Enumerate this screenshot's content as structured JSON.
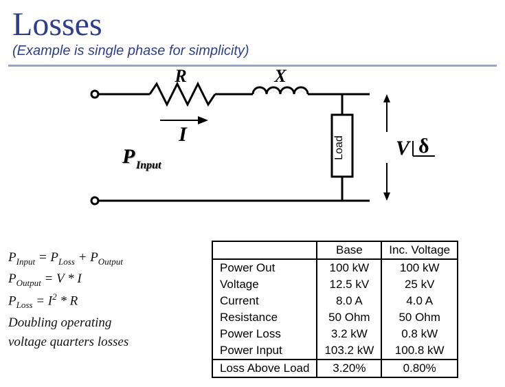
{
  "header": {
    "title": "Losses",
    "subtitle": "(Example is single phase for simplicity)",
    "title_color": "#2e3e8e",
    "title_fontsize": 48,
    "subtitle_fontsize": 20
  },
  "circuit": {
    "labels": {
      "R": "R",
      "X": "X",
      "I": "I",
      "P": "P",
      "P_sub": "Input",
      "Load": "Load",
      "V": "V",
      "delta": "δ"
    },
    "stroke_color": "#000000",
    "wire_width": 3,
    "terminal_radius": 5
  },
  "formulas": {
    "line1": {
      "lhs_sym": "P",
      "lhs_sub": "Input",
      "eq": "= ",
      "r1_sym": "P",
      "r1_sub": "Loss",
      "plus": "+ ",
      "r2_sym": "P",
      "r2_sub": "Output"
    },
    "line2": {
      "lhs_sym": "P",
      "lhs_sub": "Output",
      "eq": " = V * I"
    },
    "line3": {
      "lhs_sym": "P",
      "lhs_sub": "Loss",
      "mid": "  = I",
      "sup": "2",
      "tail": " * R"
    },
    "footnote_l1": "Doubling operating",
    "footnote_l2": "voltage quarters losses"
  },
  "table": {
    "headers": [
      "",
      "Base",
      "Inc. Voltage"
    ],
    "rows": [
      [
        "Power Out",
        "100 kW",
        "100 kW"
      ],
      [
        "Voltage",
        "12.5 kV",
        "25 kV"
      ],
      [
        "Current",
        "8.0 A",
        "4.0 A"
      ],
      [
        "Resistance",
        "50 Ohm",
        "50 Ohm"
      ],
      [
        "Power Loss",
        "3.2 kW",
        "0.8 kW"
      ],
      [
        "Power Input",
        "103.2 kW",
        "100.8 kW"
      ],
      [
        "Loss Above Load",
        "3.20%",
        "0.80%"
      ]
    ],
    "border_color": "#000000",
    "cell_fontsize": 17
  }
}
